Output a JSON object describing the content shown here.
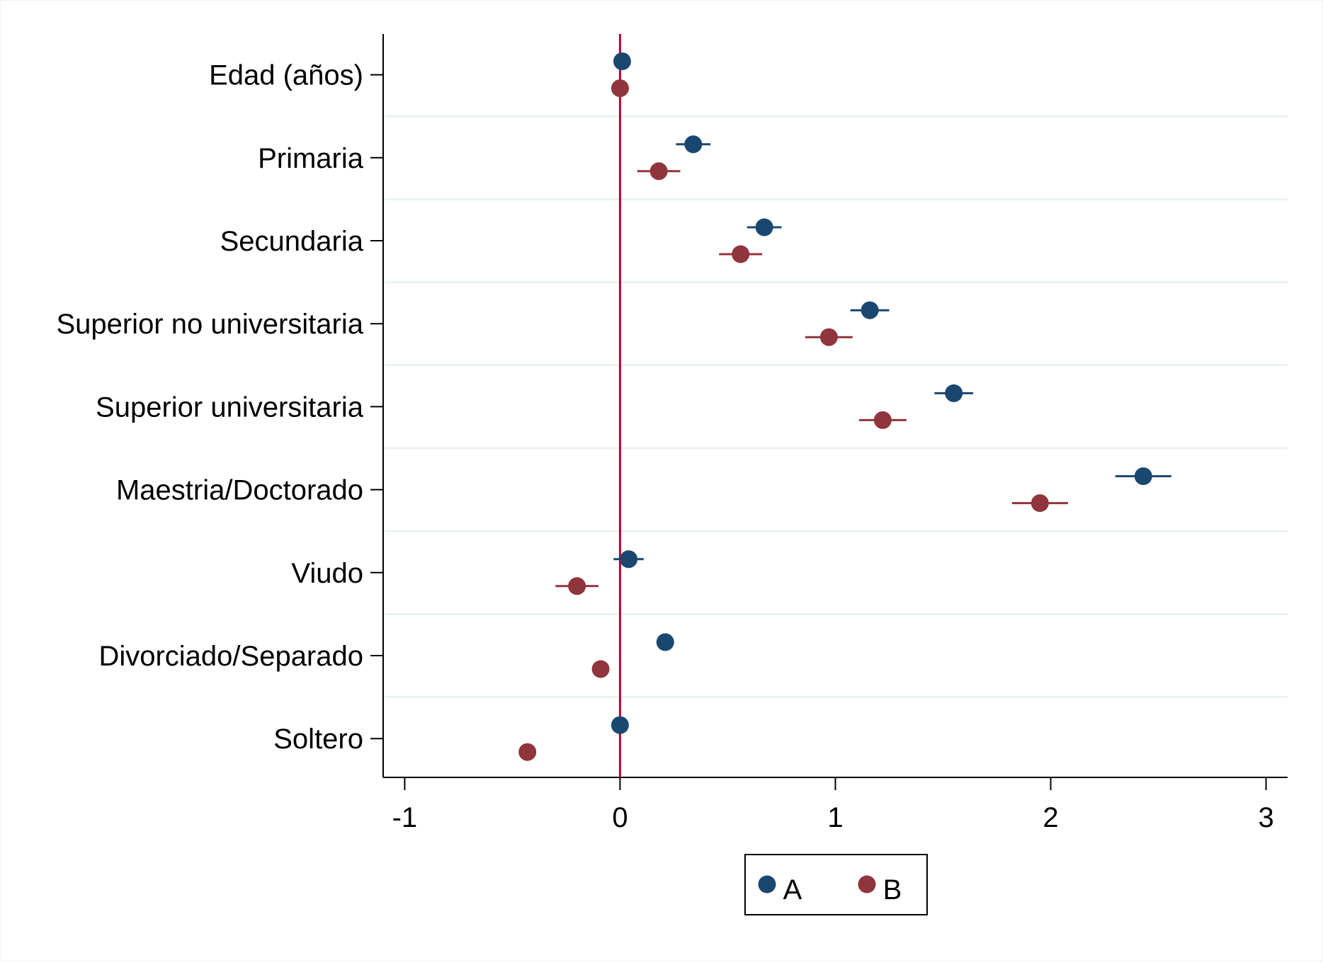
{
  "chart_data": {
    "type": "scatter",
    "subtype": "coefficient-plot",
    "title": "",
    "xlabel": "",
    "ylabel": "",
    "xlim": [
      -1.1,
      3.1
    ],
    "xticks": [
      -1,
      0,
      1,
      2,
      3
    ],
    "xtick_labels": [
      "-1",
      "0",
      "1",
      "2",
      "3"
    ],
    "reference_line": 0,
    "categories": [
      "Edad (años)",
      "Primaria",
      "Secundaria",
      "Superior no universitaria",
      "Superior universitaria",
      "Maestria/Doctorado",
      "Viudo",
      "Divorciado/Separado",
      "Soltero"
    ],
    "series": [
      {
        "name": "A",
        "color": "#1a476f",
        "values": [
          0.01,
          0.34,
          0.67,
          1.16,
          1.55,
          2.43,
          0.04,
          0.21,
          0.0
        ],
        "ci_low": [
          0.01,
          0.26,
          0.59,
          1.07,
          1.46,
          2.3,
          -0.03,
          0.21,
          0.0
        ],
        "ci_high": [
          0.01,
          0.42,
          0.75,
          1.25,
          1.64,
          2.56,
          0.11,
          0.21,
          0.0
        ]
      },
      {
        "name": "B",
        "color": "#90353b",
        "values": [
          0.0,
          0.18,
          0.56,
          0.97,
          1.22,
          1.95,
          -0.2,
          -0.09,
          -0.43
        ],
        "ci_low": [
          0.0,
          0.08,
          0.46,
          0.86,
          1.11,
          1.82,
          -0.3,
          -0.09,
          -0.43
        ],
        "ci_high": [
          0.0,
          0.28,
          0.66,
          1.08,
          1.33,
          2.08,
          -0.1,
          -0.09,
          -0.43
        ]
      }
    ],
    "grid": true,
    "legend": {
      "position": "bottom-center",
      "labels": [
        "A",
        "B"
      ]
    }
  },
  "colors": {
    "reference_line": "#c10534",
    "grid": "#eaf2f3",
    "axis": "#000000"
  }
}
